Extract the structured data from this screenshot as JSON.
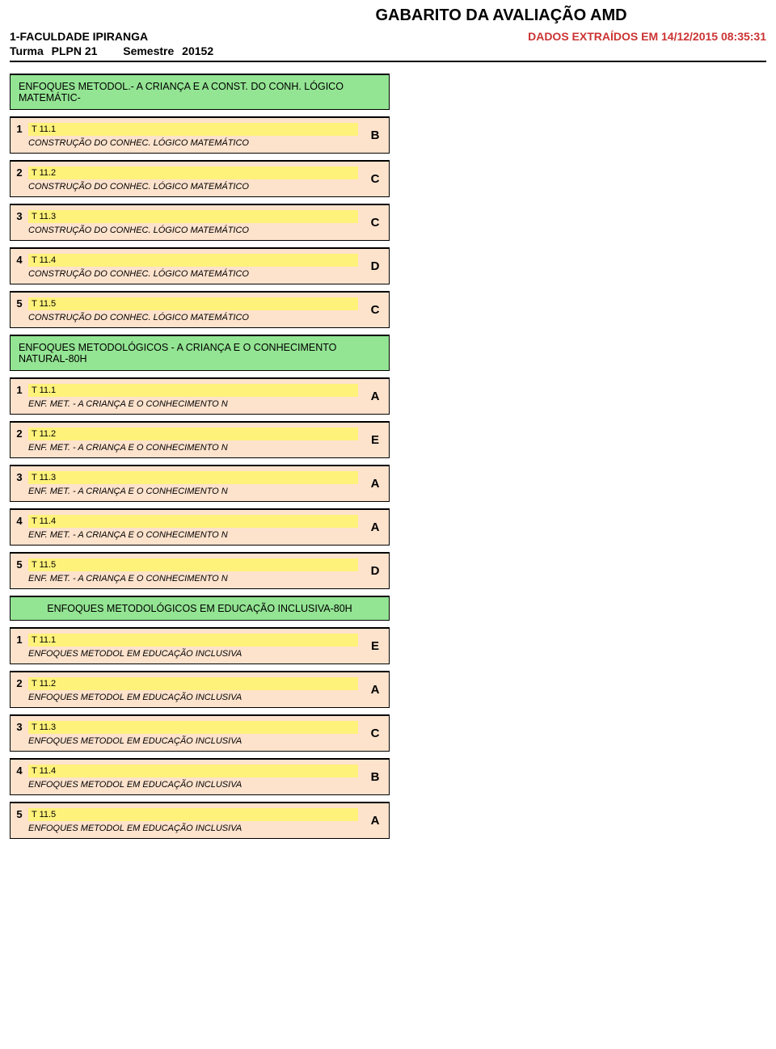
{
  "title": "GABARITO DA AVALIAÇÃO AMD",
  "header": {
    "institution": "1-FACULDADE IPIRANGA",
    "extracted": "DADOS EXTRAÍDOS EM 14/12/2015 08:35:31",
    "turma_label": "Turma",
    "turma_value": "PLPN 21",
    "semestre_label": "Semestre",
    "semestre_value": "20152"
  },
  "colors": {
    "section_bg": "#93e493",
    "question_bg": "#fde2cc",
    "code_bg": "#fff27a",
    "extracted_color": "#cc3333"
  },
  "sections": [
    {
      "title": "ENFOQUES METODOL.- A CRIANÇA E A CONST. DO CONH. LÓGICO MATEMÁTIC-",
      "align": "left",
      "questions": [
        {
          "num": "1",
          "code": "T 11.1",
          "subject": "CONSTRUÇÃO DO CONHEC. LÓGICO MATEMÁTICO",
          "answer": "B"
        },
        {
          "num": "2",
          "code": "T 11.2",
          "subject": "CONSTRUÇÃO DO CONHEC. LÓGICO MATEMÁTICO",
          "answer": "C"
        },
        {
          "num": "3",
          "code": "T 11.3",
          "subject": "CONSTRUÇÃO DO CONHEC. LÓGICO MATEMÁTICO",
          "answer": "C"
        },
        {
          "num": "4",
          "code": "T 11.4",
          "subject": "CONSTRUÇÃO DO CONHEC. LÓGICO MATEMÁTICO",
          "answer": "D"
        },
        {
          "num": "5",
          "code": "T 11.5",
          "subject": "CONSTRUÇÃO DO CONHEC. LÓGICO MATEMÁTICO",
          "answer": "C"
        }
      ]
    },
    {
      "title": "ENFOQUES METODOLÓGICOS - A CRIANÇA E O CONHECIMENTO NATURAL-80H",
      "align": "left",
      "questions": [
        {
          "num": "1",
          "code": "T 11.1",
          "subject": "ENF. MET. - A CRIANÇA E O CONHECIMENTO N",
          "answer": "A"
        },
        {
          "num": "2",
          "code": "T 11.2",
          "subject": "ENF. MET. - A CRIANÇA E O CONHECIMENTO N",
          "answer": "E"
        },
        {
          "num": "3",
          "code": "T 11.3",
          "subject": "ENF. MET. - A CRIANÇA E O CONHECIMENTO N",
          "answer": "A"
        },
        {
          "num": "4",
          "code": "T 11.4",
          "subject": "ENF. MET. - A CRIANÇA E O CONHECIMENTO N",
          "answer": "A"
        },
        {
          "num": "5",
          "code": "T 11.5",
          "subject": "ENF. MET. - A CRIANÇA E O CONHECIMENTO N",
          "answer": "D"
        }
      ]
    },
    {
      "title": "ENFOQUES METODOLÓGICOS EM EDUCAÇÃO INCLUSIVA-80H",
      "align": "center",
      "questions": [
        {
          "num": "1",
          "code": "T 11.1",
          "subject": "ENFOQUES METODOL EM EDUCAÇÃO INCLUSIVA",
          "answer": "E"
        },
        {
          "num": "2",
          "code": "T 11.2",
          "subject": "ENFOQUES METODOL EM EDUCAÇÃO INCLUSIVA",
          "answer": "A"
        },
        {
          "num": "3",
          "code": "T 11.3",
          "subject": "ENFOQUES METODOL EM EDUCAÇÃO INCLUSIVA",
          "answer": "C"
        },
        {
          "num": "4",
          "code": "T 11.4",
          "subject": "ENFOQUES METODOL EM EDUCAÇÃO INCLUSIVA",
          "answer": "B"
        },
        {
          "num": "5",
          "code": "T 11.5",
          "subject": "ENFOQUES METODOL EM EDUCAÇÃO INCLUSIVA",
          "answer": "A"
        }
      ]
    }
  ]
}
